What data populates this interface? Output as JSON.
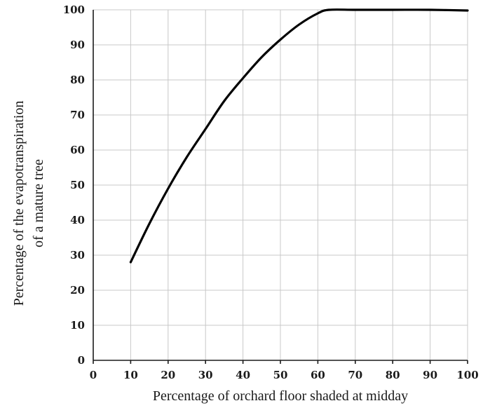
{
  "chart_data": {
    "type": "line",
    "xlabel": "Percentage of orchard floor shaded at midday",
    "ylabel_line1": "Percentage of the evapotranspiration",
    "ylabel_line2": "of a mature tree",
    "xlim": [
      0,
      100
    ],
    "ylim": [
      0,
      100
    ],
    "x_ticks": [
      0,
      10,
      20,
      30,
      40,
      50,
      60,
      70,
      80,
      90,
      100
    ],
    "y_ticks": [
      0,
      10,
      20,
      30,
      40,
      50,
      60,
      70,
      80,
      90,
      100
    ],
    "grid": true,
    "series": [
      {
        "x": [
          10,
          15,
          20,
          25,
          30,
          35,
          40,
          45,
          50,
          55,
          60,
          63,
          70,
          80,
          90,
          100
        ],
        "y": [
          28,
          39,
          49,
          58,
          66,
          74,
          80.5,
          86.5,
          91.5,
          95.8,
          99,
          100,
          100,
          100,
          100,
          99.8
        ],
        "color": "#000000"
      }
    ]
  }
}
